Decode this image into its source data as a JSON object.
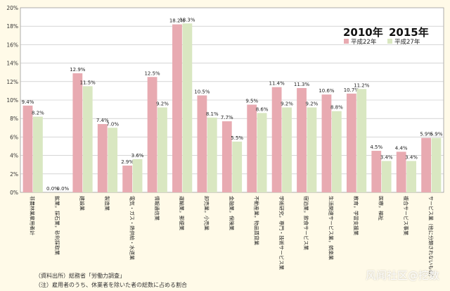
{
  "chart_data": {
    "type": "bar",
    "title": "",
    "xlabel": "",
    "ylabel": "",
    "ylim": [
      0,
      20
    ],
    "yticks": [
      0,
      2,
      4,
      6,
      8,
      10,
      12,
      14,
      16,
      18,
      20
    ],
    "ytick_labels": [
      "0%",
      "2%",
      "4%",
      "6%",
      "8%",
      "10%",
      "12%",
      "14%",
      "16%",
      "18%",
      "20%"
    ],
    "grid": true,
    "legend_position": "top-right",
    "categories": [
      "非農林業雇用者計",
      "鉱業，採石業，砂利採取業",
      "建設業",
      "製造業",
      "電気・ガス・熱供給・水道業",
      "情報通信業",
      "運輸業，郵便業",
      "卸売業，小売業",
      "金融業，保険業",
      "不動産業，物品賃貸業",
      "学術研究，専門・技術サービス業",
      "宿泊業，飲食サービス業",
      "生活関連サービス業，娯楽業",
      "教育，学習支援業",
      "医療，福祉",
      "複合サービス事業",
      "サービス業（他に分類されないもの）"
    ],
    "series": [
      {
        "name": "2010年",
        "sublabel": "平成22年",
        "color": "#e8aab1",
        "values": [
          9.4,
          0.0,
          12.9,
          7.4,
          2.9,
          12.5,
          18.2,
          10.5,
          7.7,
          9.5,
          11.4,
          11.3,
          10.6,
          10.7,
          4.5,
          4.4,
          5.9
        ],
        "labels": [
          "9.4%",
          "0.0%",
          "12.9%",
          "7.4%",
          "2.9%",
          "12.5%",
          "18.2%",
          "10.5%",
          "7.7%",
          "9.5%",
          "11.4%",
          "11.3%",
          "10.6%",
          "10.7%",
          "4.5%",
          "4.4%",
          "5.9%"
        ]
      },
      {
        "name": "2015年",
        "sublabel": "平成27年",
        "color": "#d9e7c1",
        "values": [
          8.2,
          0.0,
          11.5,
          7.0,
          3.6,
          9.2,
          18.3,
          8.1,
          5.5,
          8.6,
          9.2,
          9.2,
          8.8,
          11.2,
          3.4,
          3.4,
          5.9
        ],
        "labels": [
          "8.2%",
          "0.0%",
          "11.5%",
          "7.0%",
          "3.6%",
          "9.2%",
          "18.3%",
          "8.1%",
          "5.5%",
          "8.6%",
          "9.2%",
          "9.2%",
          "8.8%",
          "11.2%",
          "3.4%",
          "3.4%",
          "5.9%"
        ]
      }
    ]
  },
  "notes": {
    "source": "（資料出所）総務省「労働力調査」",
    "definition": "（注）雇用者のうち、休業者を除いた者の総数に占める割合"
  },
  "watermark": "风闻社区@挖数"
}
